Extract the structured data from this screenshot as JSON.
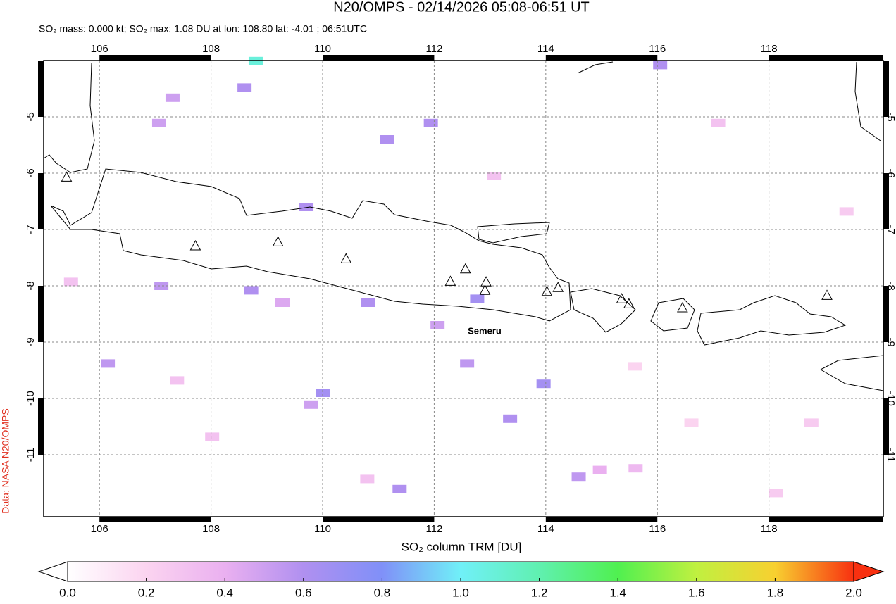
{
  "map": {
    "title": "N20/OMPS - 02/14/2026 05:08-06:51 UT",
    "subtitle": "SO₂ mass: 0.000 kt; SO₂ max: 1.08 DU at lon: 108.80 lat: -4.01 ; 06:51UTC",
    "credit": "Data: NASA N20/OMPS",
    "label": "Semeru",
    "xlim": [
      105.0,
      120.05
    ],
    "ylim": [
      -12.1,
      -4.0
    ],
    "xticks": [
      106,
      108,
      110,
      112,
      114,
      116,
      118
    ],
    "yticks": [
      -5,
      -6,
      -7,
      -8,
      -9,
      -10,
      -11
    ],
    "grid": true,
    "volcanoes": [
      {
        "lon": 105.41,
        "lat": -6.08
      },
      {
        "lon": 107.72,
        "lat": -7.3
      },
      {
        "lon": 109.2,
        "lat": -7.23
      },
      {
        "lon": 110.42,
        "lat": -7.53
      },
      {
        "lon": 112.29,
        "lat": -7.93
      },
      {
        "lon": 112.56,
        "lat": -7.71
      },
      {
        "lon": 112.93,
        "lat": -7.94
      },
      {
        "lon": 112.91,
        "lat": -8.09
      },
      {
        "lon": 114.02,
        "lat": -8.11
      },
      {
        "lon": 114.22,
        "lat": -8.04
      },
      {
        "lon": 115.36,
        "lat": -8.24
      },
      {
        "lon": 115.49,
        "lat": -8.33
      },
      {
        "lon": 116.45,
        "lat": -8.4
      },
      {
        "lon": 119.04,
        "lat": -8.18
      }
    ],
    "pixels": [
      {
        "lon": 108.8,
        "lat": -4.01,
        "value": 1.08
      },
      {
        "lon": 108.6,
        "lat": -4.48,
        "value": 0.6
      },
      {
        "lon": 111.94,
        "lat": -5.11,
        "value": 0.6
      },
      {
        "lon": 111.15,
        "lat": -5.4,
        "value": 0.6
      },
      {
        "lon": 109.71,
        "lat": -6.6,
        "value": 0.6
      },
      {
        "lon": 107.11,
        "lat": -8.0,
        "value": 0.55
      },
      {
        "lon": 108.72,
        "lat": -8.08,
        "value": 0.6
      },
      {
        "lon": 110.81,
        "lat": -8.3,
        "value": 0.6
      },
      {
        "lon": 112.77,
        "lat": -8.23,
        "value": 0.65
      },
      {
        "lon": 112.06,
        "lat": -8.7,
        "value": 0.5
      },
      {
        "lon": 112.59,
        "lat": -9.38,
        "value": 0.55
      },
      {
        "lon": 110.0,
        "lat": -9.9,
        "value": 0.65
      },
      {
        "lon": 113.96,
        "lat": -9.74,
        "value": 0.65
      },
      {
        "lon": 113.36,
        "lat": -10.36,
        "value": 0.6
      },
      {
        "lon": 111.38,
        "lat": -11.61,
        "value": 0.6
      },
      {
        "lon": 114.59,
        "lat": -11.39,
        "value": 0.55
      },
      {
        "lon": 116.05,
        "lat": -4.08,
        "value": 0.6
      },
      {
        "lon": 106.15,
        "lat": -9.38,
        "value": 0.55
      },
      {
        "lon": 107.31,
        "lat": -4.66,
        "value": 0.5
      },
      {
        "lon": 107.07,
        "lat": -5.11,
        "value": 0.5
      },
      {
        "lon": 109.28,
        "lat": -8.3,
        "value": 0.45
      },
      {
        "lon": 109.79,
        "lat": -10.11,
        "value": 0.5
      },
      {
        "lon": 114.97,
        "lat": -11.27,
        "value": 0.4
      },
      {
        "lon": 115.61,
        "lat": -11.24,
        "value": 0.35
      },
      {
        "lon": 117.09,
        "lat": -5.11,
        "value": 0.3
      },
      {
        "lon": 105.49,
        "lat": -7.93,
        "value": 0.3
      },
      {
        "lon": 108.02,
        "lat": -10.68,
        "value": 0.3
      },
      {
        "lon": 118.76,
        "lat": -10.43,
        "value": 0.25
      },
      {
        "lon": 119.39,
        "lat": -6.68,
        "value": 0.25
      },
      {
        "lon": 116.61,
        "lat": -10.43,
        "value": 0.2
      },
      {
        "lon": 113.07,
        "lat": -6.05,
        "value": 0.3
      },
      {
        "lon": 110.8,
        "lat": -11.43,
        "value": 0.3
      },
      {
        "lon": 115.6,
        "lat": -9.43,
        "value": 0.2
      },
      {
        "lon": 118.13,
        "lat": -11.68,
        "value": 0.25
      },
      {
        "lon": 107.39,
        "lat": -9.68,
        "value": 0.3
      }
    ]
  },
  "colorbar": {
    "label": "SO₂ column TRM [DU]",
    "range": [
      0,
      2
    ],
    "colors": [
      "#ffffff",
      "#fbd4f0",
      "#eab0f0",
      "#b090f0",
      "#8090f8",
      "#70f0f8",
      "#60f0b0",
      "#50f050",
      "#c0f040",
      "#f8d030",
      "#f83010"
    ],
    "ticks": [
      {
        "value": 0,
        "label": "0.0"
      },
      {
        "value": 0.2,
        "label": "0.2"
      },
      {
        "value": 0.4,
        "label": "0.4"
      },
      {
        "value": 0.6,
        "label": "0.6"
      },
      {
        "value": 0.8,
        "label": "0.8"
      },
      {
        "value": 1,
        "label": "1.0"
      },
      {
        "value": 1.2,
        "label": "1.2"
      },
      {
        "value": 1.4,
        "label": "1.4"
      },
      {
        "value": 1.6,
        "label": "1.6"
      },
      {
        "value": 1.8,
        "label": "1.8"
      },
      {
        "value": 2,
        "label": "2.0"
      }
    ]
  }
}
